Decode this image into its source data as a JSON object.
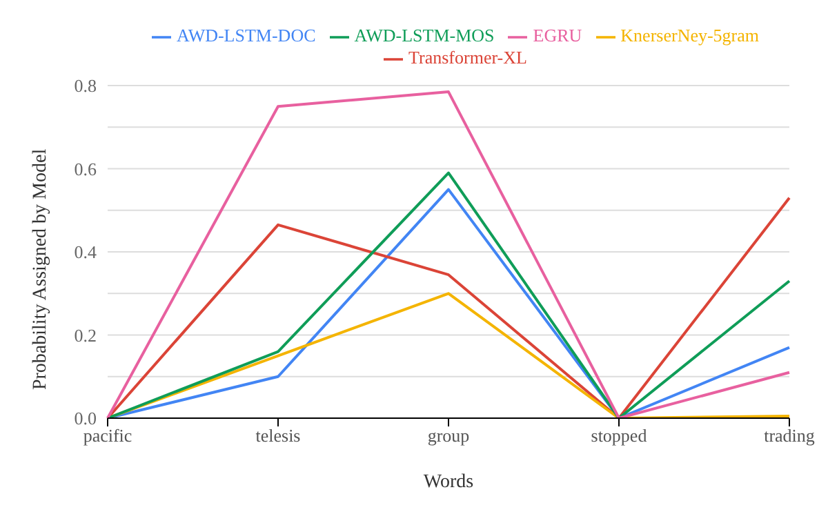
{
  "chart_data": {
    "type": "line",
    "xlabel": "Words",
    "ylabel": "Probability Assigned by Model",
    "categories": [
      "pacific",
      "telesis",
      "group",
      "stopped",
      "trading"
    ],
    "series": [
      {
        "name": "AWD-LSTM-DOC",
        "color": "#4285f4",
        "values": [
          0,
          0.1,
          0.55,
          0,
          0.17
        ]
      },
      {
        "name": "Transformer-XL",
        "color": "#db4437",
        "values": [
          0,
          0.465,
          0.345,
          0,
          0.53
        ]
      },
      {
        "name": "KnerserNey-5gram",
        "color": "#f4b400",
        "values": [
          0,
          0.15,
          0.3,
          0,
          0.005
        ]
      },
      {
        "name": "AWD-LSTM-MOS",
        "color": "#0f9d58",
        "values": [
          0,
          0.16,
          0.59,
          0,
          0.33
        ]
      },
      {
        "name": "EGRU",
        "color": "#e8609f",
        "values": [
          0,
          0.75,
          0.785,
          0,
          0.11
        ]
      }
    ],
    "ylim": [
      0,
      0.8
    ],
    "yticks": [
      {
        "value": 0,
        "label": "0.0"
      },
      {
        "value": 0.1,
        "label": null
      },
      {
        "value": 0.2,
        "label": "0.2"
      },
      {
        "value": 0.3,
        "label": null
      },
      {
        "value": 0.4,
        "label": "0.4"
      },
      {
        "value": 0.5,
        "label": null
      },
      {
        "value": 0.6,
        "label": "0.6"
      },
      {
        "value": 0.7,
        "label": null
      },
      {
        "value": 0.8,
        "label": "0.8"
      }
    ],
    "grid": "y",
    "legend": "top",
    "marker": "none",
    "line_style": "solid"
  }
}
